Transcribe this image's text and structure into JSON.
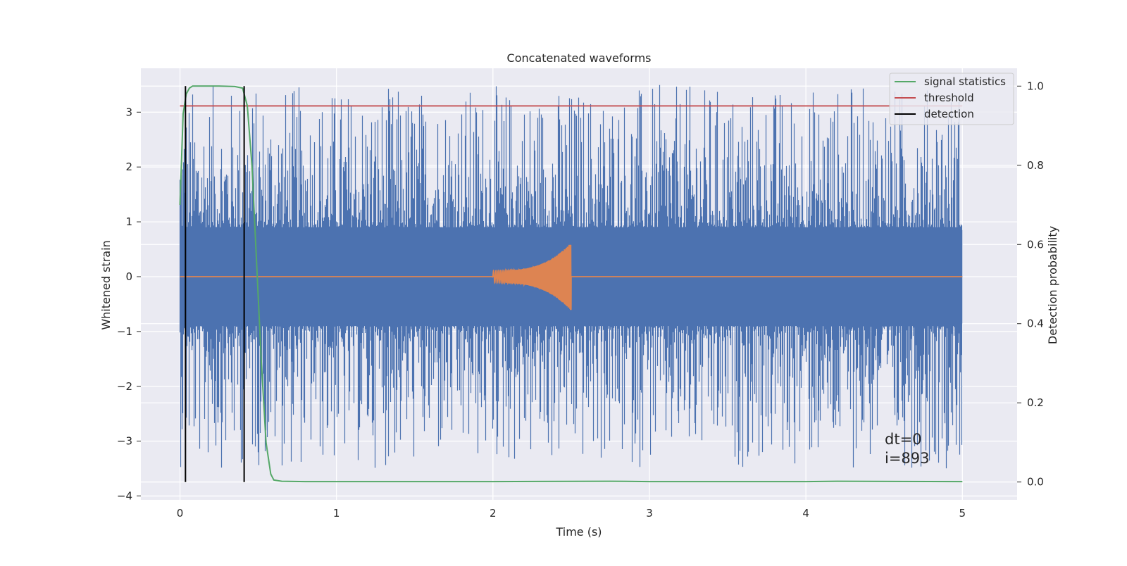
{
  "chart_data": {
    "type": "line",
    "title": "Concatenated waveforms",
    "xlabel": "Time (s)",
    "ylabel_left": "Whitened strain",
    "ylabel_right": "Detection probability",
    "xlim": [
      -0.25,
      5.35
    ],
    "ylim_left": [
      -4.07,
      3.8
    ],
    "ylim_right": [
      -0.045,
      1.045
    ],
    "x_ticks": [
      0,
      1,
      2,
      3,
      4,
      5
    ],
    "x_tick_labels": [
      "0",
      "1",
      "2",
      "3",
      "4",
      "5"
    ],
    "y_left_ticks": [
      -4,
      -3,
      -2,
      -1,
      0,
      1,
      2,
      3
    ],
    "y_left_tick_labels": [
      "−4",
      "−3",
      "−2",
      "−1",
      "0",
      "1",
      "2",
      "3"
    ],
    "y_right_ticks": [
      0.0,
      0.2,
      0.4,
      0.6,
      0.8,
      1.0
    ],
    "y_right_tick_labels": [
      "0.0",
      "0.2",
      "0.4",
      "0.6",
      "0.8",
      "1.0"
    ],
    "grid": true,
    "legend_position": "top-right",
    "series": [
      {
        "name": "noise",
        "axis": "left",
        "color": "#4c72b0",
        "x_range": [
          0,
          5
        ],
        "band": [
          -0.85,
          0.85
        ],
        "peak_range": [
          -3.5,
          3.5
        ]
      },
      {
        "name": "chirp",
        "axis": "left",
        "color": "#dd8452",
        "x_range": [
          0,
          5
        ],
        "chirp_start": 2.0,
        "chirp_end": 2.5,
        "peak_amplitude": 0.62
      },
      {
        "name": "signal statistics",
        "axis": "right",
        "color": "#55a868",
        "x": [
          0.0,
          0.02,
          0.04,
          0.06,
          0.08,
          0.1,
          0.15,
          0.25,
          0.35,
          0.4,
          0.43,
          0.46,
          0.49,
          0.52,
          0.55,
          0.58,
          0.6,
          0.65,
          0.8,
          1.0,
          2.0,
          2.75,
          3.0,
          4.0,
          4.2,
          5.0
        ],
        "y": [
          0.7,
          0.93,
          0.98,
          0.995,
          1.0,
          1.0,
          1.0,
          1.0,
          0.999,
          0.995,
          0.95,
          0.8,
          0.55,
          0.3,
          0.1,
          0.02,
          0.005,
          0.002,
          0.001,
          0.001,
          0.001,
          0.002,
          0.001,
          0.001,
          0.002,
          0.001
        ]
      },
      {
        "name": "threshold",
        "axis": "right",
        "color": "#c44e52",
        "x": [
          0,
          5
        ],
        "y": [
          0.95,
          0.95
        ]
      },
      {
        "name": "detection",
        "axis": "right",
        "color": "#000000",
        "x": [
          0.035,
          0.41
        ],
        "y": [
          0.0,
          1.0
        ]
      }
    ],
    "legend": [
      {
        "label": "signal statistics",
        "color": "#55a868"
      },
      {
        "label": "threshold",
        "color": "#c44e52"
      },
      {
        "label": "detection",
        "color": "#000000"
      }
    ],
    "annotations": [
      "dt=0",
      "i=893"
    ]
  }
}
